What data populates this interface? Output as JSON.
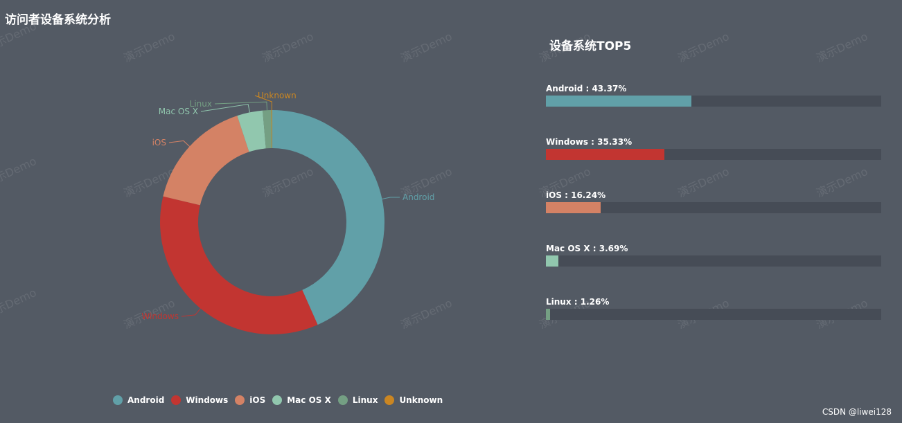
{
  "page": {
    "title": "访问者设备系统分析",
    "credit": "CSDN @liwei128",
    "watermark": "演示Demo"
  },
  "colors": {
    "background": "#535a64",
    "track": "#464c56"
  },
  "chart_data": [
    {
      "type": "pie",
      "variant": "donut",
      "title": "",
      "legend_position": "bottom",
      "categories": [
        "Android",
        "Windows",
        "iOS",
        "Mac OS X",
        "Linux",
        "Unknown"
      ],
      "values": [
        43.37,
        35.33,
        16.24,
        3.69,
        1.26,
        0.11
      ],
      "colors": [
        "#61a0a8",
        "#c23531",
        "#d48265",
        "#91c7ae",
        "#749f83",
        "#ca8622"
      ]
    },
    {
      "type": "bar",
      "orientation": "horizontal",
      "title": "设备系统TOP5",
      "categories": [
        "Android",
        "Windows",
        "iOS",
        "Mac OS X",
        "Linux"
      ],
      "values": [
        43.37,
        35.33,
        16.24,
        3.69,
        1.26
      ],
      "labels": [
        "Android : 43.37%",
        "Windows : 35.33%",
        "iOS : 16.24%",
        "Mac OS X : 3.69%",
        "Linux : 1.26%"
      ],
      "xlim": [
        0,
        100
      ],
      "colors": [
        "#61a0a8",
        "#c23531",
        "#d48265",
        "#91c7ae",
        "#749f83"
      ]
    }
  ]
}
